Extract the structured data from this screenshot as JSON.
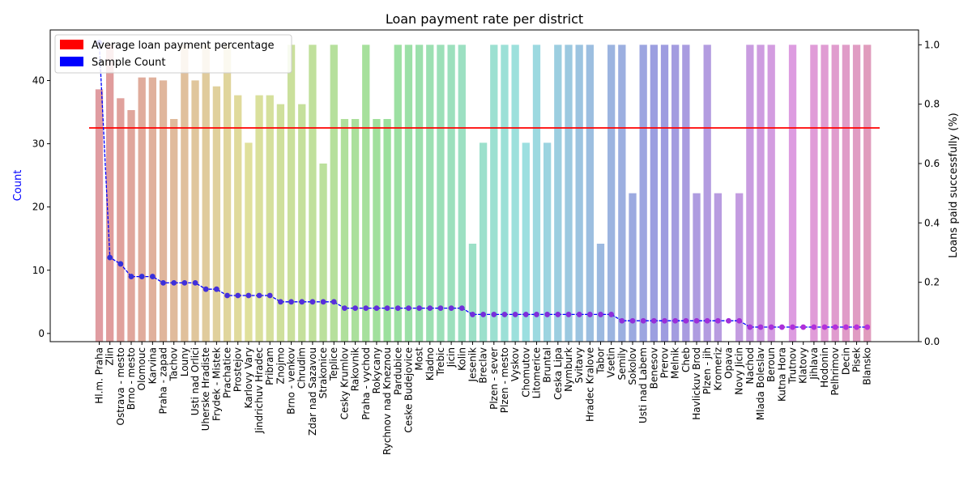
{
  "chart_data": {
    "type": "bar",
    "title": "Loan payment rate per district",
    "xlabel": "",
    "ylabel_left": "Count",
    "ylabel_right": "Loans paid successfully (%)",
    "ylim_left": [
      -1.3,
      48
    ],
    "ylim_right": [
      0,
      1.05
    ],
    "yticks_left": [
      0,
      10,
      20,
      30,
      40
    ],
    "yticks_right": [
      0.0,
      0.2,
      0.4,
      0.6,
      0.8,
      1.0
    ],
    "legend_position": "top-left",
    "legend": [
      {
        "label": "Average loan payment percentage",
        "color": "#ff0000"
      },
      {
        "label": "Sample Count",
        "color": "#0000ff"
      }
    ],
    "average_payment_rate": 0.72,
    "line_color": "#0000ff",
    "average_line_color": "#ff0000",
    "categories": [
      "Hl.m. Praha",
      "Zlin",
      "Ostrava - mesto",
      "Brno - mesto",
      "Olomouc",
      "Karvina",
      "Praha - zapad",
      "Tachov",
      "Louny",
      "Usti nad Orlici",
      "Uherske Hradiste",
      "Frydek - Mistek",
      "Prachatice",
      "Prostejov",
      "Karlovy Vary",
      "Jindrichuv Hradec",
      "Pribram",
      "Znojmo",
      "Brno - venkov",
      "Chrudim",
      "Zdar nad Sazavou",
      "Strakonice",
      "Teplice",
      "Cesky Krumlov",
      "Rakovnik",
      "Praha - vychod",
      "Rokycany",
      "Rychnov nad Kneznou",
      "Pardubice",
      "Ceske Budejovice",
      "Most",
      "Kladno",
      "Trebic",
      "Jicin",
      "Kolin",
      "Jesenik",
      "Breclav",
      "Plzen - sever",
      "Plzen - mesto",
      "Vyskov",
      "Chomutov",
      "Litomerice",
      "Bruntal",
      "Ceska Lipa",
      "Nymburk",
      "Svitavy",
      "Hradec Kralove",
      "Tabor",
      "Vsetin",
      "Semily",
      "Sokolov",
      "Usti nad Labem",
      "Benesov",
      "Prerov",
      "Melnik",
      "Cheb",
      "Havlickuv Brod",
      "Plzen - jih",
      "Kromeriz",
      "Opava",
      "Novy Jicin",
      "Nachod",
      "Mlada Boleslav",
      "Beroun",
      "Kutna Hora",
      "Trutnov",
      "Klatovy",
      "Jihlava",
      "Hodonin",
      "Pelhrimov",
      "Decin",
      "Pisek",
      "Blansko"
    ],
    "series": [
      {
        "axis": "right",
        "values": [
          0.85,
          1.0,
          0.82,
          0.78,
          0.89,
          0.89,
          0.88,
          0.75,
          1.0,
          0.88,
          1.0,
          0.86,
          1.0,
          0.83,
          0.67,
          0.83,
          0.83,
          0.8,
          1.0,
          0.8,
          1.0,
          0.6,
          1.0,
          0.75,
          0.75,
          1.0,
          0.75,
          0.75,
          1.0,
          1.0,
          1.0,
          1.0,
          1.0,
          1.0,
          1.0,
          0.33,
          0.67,
          1.0,
          1.0,
          1.0,
          0.67,
          1.0,
          0.67,
          1.0,
          1.0,
          1.0,
          1.0,
          0.33,
          1.0,
          1.0,
          0.5,
          1.0,
          1.0,
          1.0,
          1.0,
          1.0,
          0.5,
          1.0,
          0.5,
          0.0,
          0.5,
          1.0,
          1.0,
          1.0,
          0.0,
          1.0,
          0.0,
          1.0,
          1.0,
          1.0,
          1.0,
          1.0,
          1.0
        ]
      },
      {
        "axis": "left",
        "values": [
          46,
          12,
          11,
          9,
          9,
          9,
          8,
          8,
          8,
          8,
          7,
          7,
          6,
          6,
          6,
          6,
          6,
          5,
          5,
          5,
          5,
          5,
          5,
          4,
          4,
          4,
          4,
          4,
          4,
          4,
          4,
          4,
          4,
          4,
          4,
          3,
          3,
          3,
          3,
          3,
          3,
          3,
          3,
          3,
          3,
          3,
          3,
          3,
          3,
          2,
          2,
          2,
          2,
          2,
          2,
          2,
          2,
          2,
          2,
          2,
          2,
          1,
          1,
          1,
          1,
          1,
          1,
          1,
          1,
          1,
          1,
          1,
          1
        ]
      }
    ]
  }
}
